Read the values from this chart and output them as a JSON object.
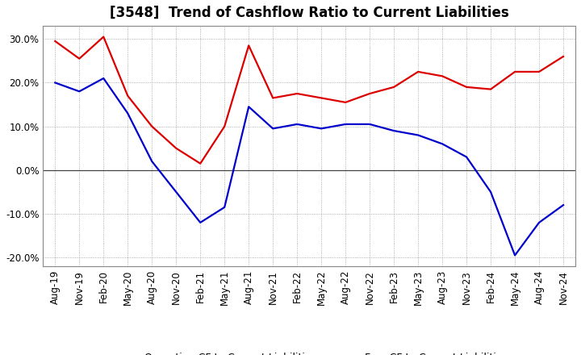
{
  "title": "[3548]  Trend of Cashflow Ratio to Current Liabilities",
  "x_labels": [
    "Aug-19",
    "Nov-19",
    "Feb-20",
    "May-20",
    "Aug-20",
    "Nov-20",
    "Feb-21",
    "May-21",
    "Aug-21",
    "Nov-21",
    "Feb-22",
    "May-22",
    "Aug-22",
    "Nov-22",
    "Feb-23",
    "May-23",
    "Aug-23",
    "Nov-23",
    "Feb-24",
    "May-24",
    "Aug-24",
    "Nov-24"
  ],
  "operating_cf": [
    29.5,
    25.5,
    30.5,
    17.0,
    10.0,
    5.0,
    1.5,
    10.0,
    28.5,
    16.5,
    17.5,
    16.5,
    15.5,
    17.5,
    19.0,
    22.5,
    21.5,
    19.0,
    18.5,
    22.5,
    22.5,
    26.0
  ],
  "free_cf": [
    20.0,
    18.0,
    21.0,
    13.0,
    2.0,
    -5.0,
    -12.0,
    -8.5,
    14.5,
    9.5,
    10.5,
    9.5,
    10.5,
    10.5,
    9.0,
    8.0,
    6.0,
    3.0,
    -5.0,
    -19.5,
    -12.0,
    -8.0
  ],
  "operating_cf_color": "#dd0000",
  "free_cf_color": "#0000cc",
  "operating_label": "Operating CF to Current Liabilities",
  "free_label": "Free CF to Current Liabilities",
  "ylim": [
    -22.0,
    33.0
  ],
  "yticks": [
    -20.0,
    -10.0,
    0.0,
    10.0,
    20.0,
    30.0
  ],
  "ytick_labels": [
    "-20.0%",
    "-10.0%",
    "0.0%",
    "10.0%",
    "20.0%",
    "30.0%"
  ],
  "background_color": "#ffffff",
  "grid_color": "#999999",
  "title_fontsize": 12,
  "legend_fontsize": 9,
  "tick_fontsize": 8.5
}
